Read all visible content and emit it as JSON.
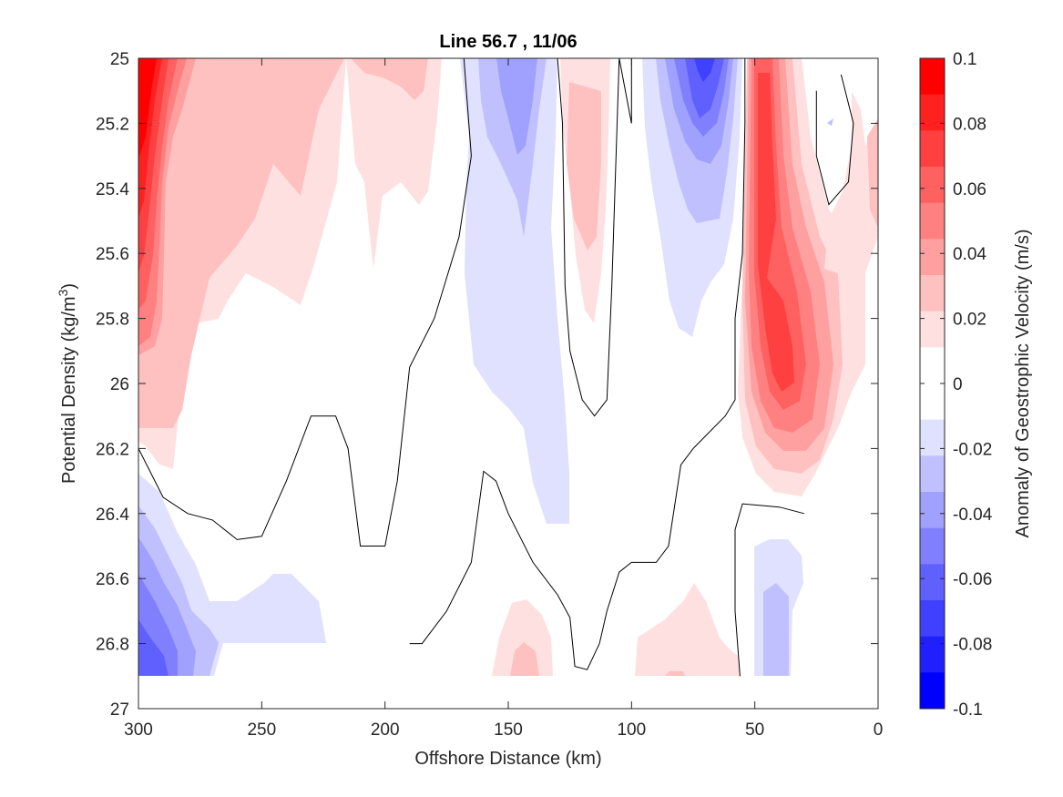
{
  "chart_data": {
    "type": "contour",
    "title": "Line 56.7 , 11/06",
    "xlabel": "Offshore Distance (km)",
    "ylabel_main": "Potential Density (kg/m",
    "ylabel_sup": "3",
    "ylabel_close": ")",
    "colorbar_label": "Anomaly of Geostrophic Velocity (m/s)",
    "xlim": [
      300,
      0
    ],
    "ylim": [
      25,
      27
    ],
    "x_reversed": true,
    "y_reversed": true,
    "x_ticks": [
      300,
      250,
      200,
      150,
      100,
      50,
      0
    ],
    "x_tick_labels": [
      "300",
      "250",
      "200",
      "150",
      "100",
      "50",
      "0"
    ],
    "y_ticks": [
      25,
      25.2,
      25.4,
      25.6,
      25.8,
      26,
      26.2,
      26.4,
      26.6,
      26.8,
      27
    ],
    "y_tick_labels": [
      "25",
      "25.2",
      "25.4",
      "25.6",
      "25.8",
      "26",
      "26.2",
      "26.4",
      "26.6",
      "26.8",
      "27"
    ],
    "colorbar": {
      "limits": [
        -0.1,
        0.1
      ],
      "ticks": [
        0.1,
        0.08,
        0.06,
        0.04,
        0.02,
        0,
        -0.02,
        -0.04,
        -0.06,
        -0.08,
        -0.1
      ],
      "tick_labels": [
        "0.1",
        "0.08",
        "0.06",
        "0.04",
        "0.02",
        "0",
        "-0.02",
        "-0.04",
        "-0.06",
        "-0.08",
        "-0.1"
      ],
      "colors_top_to_bottom": [
        "#ff0000",
        "#ff2020",
        "#ff4040",
        "#ff6060",
        "#ff8080",
        "#ffa0a0",
        "#ffc0c0",
        "#ffe0e0",
        "#ffffff",
        "#ffffff",
        "#e0e0ff",
        "#c0c0ff",
        "#a0a0ff",
        "#8080ff",
        "#6060ff",
        "#4040ff",
        "#2020ff",
        "#0000ff"
      ]
    },
    "features": [
      {
        "name": "Offshore positive core",
        "x": 295,
        "y": 25.1,
        "value": 0.1
      },
      {
        "name": "Nearshore positive jet",
        "x": 40,
        "y": 25.85,
        "value": 0.07
      },
      {
        "name": "Negative core",
        "x": 70,
        "y": 25.15,
        "value": -0.06
      },
      {
        "name": "Negative band",
        "x": 145,
        "y": 25.3,
        "value": -0.04
      },
      {
        "name": "Deep negative region",
        "x": 290,
        "y": 26.8,
        "value": -0.06
      },
      {
        "name": "Deep negative nearshore",
        "x": 40,
        "y": 26.8,
        "value": -0.04
      }
    ],
    "zero_contours": [
      {
        "name": "Western zero contour",
        "points": [
          [
            300,
            26.2
          ],
          [
            290,
            26.35
          ],
          [
            280,
            26.4
          ],
          [
            270,
            26.42
          ],
          [
            260,
            26.48
          ],
          [
            250,
            26.47
          ],
          [
            240,
            26.3
          ],
          [
            230,
            26.1
          ],
          [
            220,
            26.1
          ],
          [
            215,
            26.2
          ],
          [
            210,
            26.5
          ],
          [
            200,
            26.5
          ],
          [
            195,
            26.3
          ],
          [
            190,
            25.95
          ],
          [
            180,
            25.8
          ],
          [
            170,
            25.55
          ],
          [
            165,
            25.3
          ],
          [
            168,
            25
          ]
        ]
      },
      {
        "name": "Central zero contour",
        "points": [
          [
            190,
            26.8
          ],
          [
            185,
            26.8
          ],
          [
            175,
            26.7
          ],
          [
            165,
            26.55
          ],
          [
            160,
            26.27
          ],
          [
            155,
            26.3
          ],
          [
            150,
            26.4
          ],
          [
            140,
            26.55
          ],
          [
            130,
            26.65
          ],
          [
            125,
            26.72
          ],
          [
            123,
            26.87
          ],
          [
            118,
            26.88
          ],
          [
            113,
            26.8
          ],
          [
            110,
            26.7
          ],
          [
            105,
            26.58
          ],
          [
            100,
            26.55
          ],
          [
            90,
            26.55
          ],
          [
            85,
            26.5
          ],
          [
            80,
            26.25
          ],
          [
            75,
            26.2
          ],
          [
            62,
            26.1
          ],
          [
            58,
            26.05
          ],
          [
            58,
            25.8
          ],
          [
            55,
            25.6
          ],
          [
            54,
            25.2
          ],
          [
            54,
            25
          ]
        ]
      },
      {
        "name": "Inner zero contour",
        "points": [
          [
            130,
            25
          ],
          [
            128,
            25.2
          ],
          [
            127,
            25.7
          ],
          [
            125,
            25.9
          ],
          [
            120,
            26.05
          ],
          [
            115,
            26.1
          ],
          [
            110,
            26.05
          ],
          [
            108,
            25.7
          ],
          [
            105,
            25
          ],
          [
            100,
            25.2
          ],
          [
            100,
            25
          ]
        ]
      },
      {
        "name": "Nearshore zero contour",
        "points": [
          [
            30,
            26.4
          ],
          [
            40,
            26.38
          ],
          [
            55,
            26.37
          ],
          [
            58,
            26.45
          ],
          [
            58,
            26.7
          ],
          [
            56,
            26.9
          ]
        ]
      },
      {
        "name": "Coastal zero contour",
        "points": [
          [
            15,
            25.05
          ],
          [
            10,
            25.2
          ],
          [
            12,
            25.38
          ],
          [
            20,
            25.45
          ],
          [
            25,
            25.3
          ],
          [
            25,
            25.1
          ]
        ]
      }
    ]
  }
}
